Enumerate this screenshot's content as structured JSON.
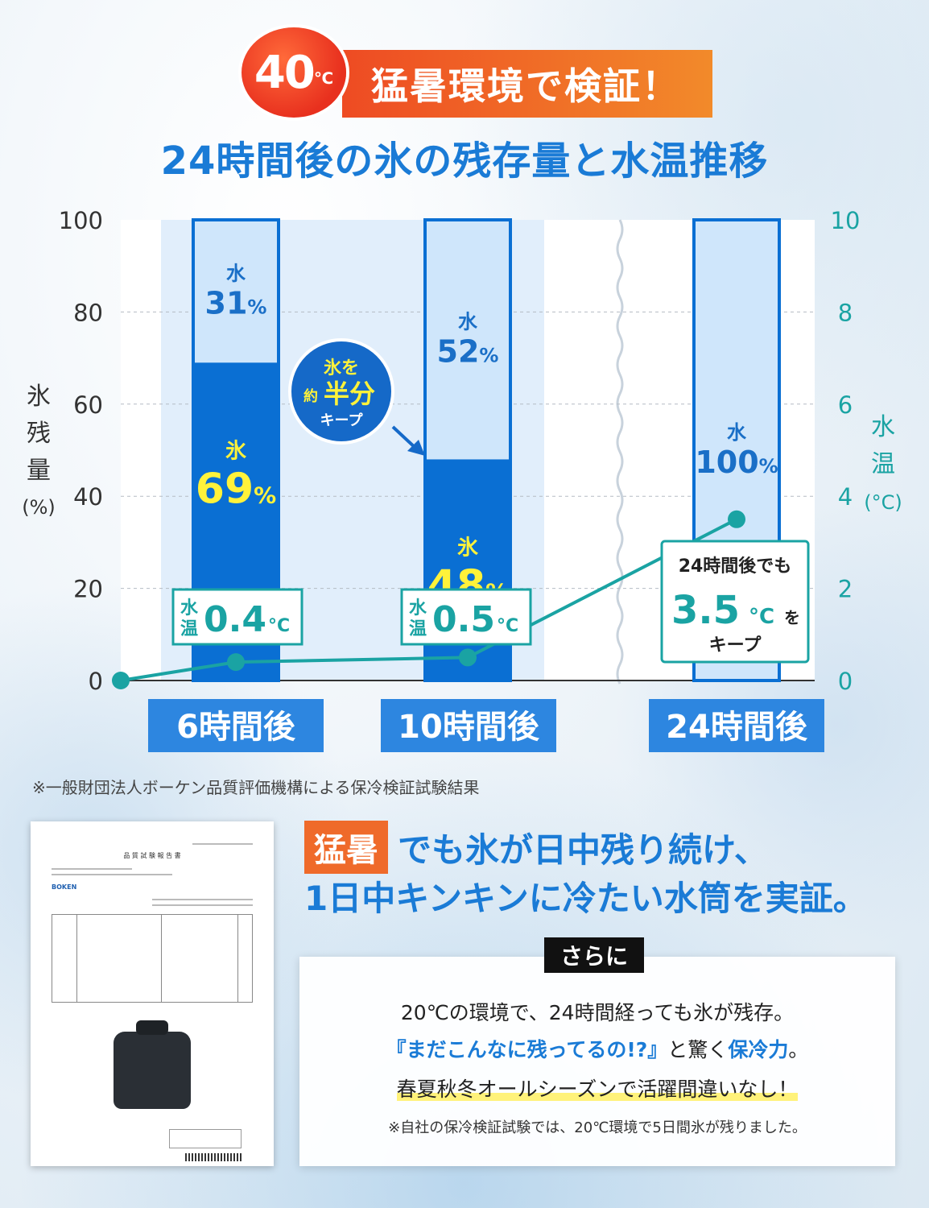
{
  "header": {
    "badge_number": "40",
    "badge_unit": "℃",
    "banner": "猛暑環境で検証！",
    "subtitle": "24時間後の氷の残存量と水温推移"
  },
  "chart_data": {
    "type": "bar",
    "categories": [
      "6時間後",
      "10時間後",
      "24時間後"
    ],
    "left_axis": {
      "label_chars": [
        "氷",
        "残",
        "量"
      ],
      "label_unit": "(%)",
      "ylim": [
        0,
        100
      ],
      "ticks": [
        "0",
        "20",
        "40",
        "60",
        "80",
        "100"
      ]
    },
    "right_axis": {
      "label_chars": [
        "水",
        "温"
      ],
      "label_unit": "(°C)",
      "ylim": [
        0,
        10
      ],
      "ticks": [
        "0",
        "2",
        "4",
        "6",
        "8",
        "10"
      ]
    },
    "series": [
      {
        "values": [
          69,
          48,
          0
        ],
        "label": "氷"
      },
      {
        "values": [
          31,
          52,
          100
        ],
        "label": "水"
      }
    ],
    "water_temp": {
      "x": [
        "0時間",
        "6時間後",
        "10時間後",
        "24時間後"
      ],
      "values": [
        0,
        0.4,
        0.5,
        3.5
      ]
    },
    "bar_labels": {
      "ice_word": "氷",
      "water_word": "水",
      "pct": "%",
      "ice_values": [
        "69",
        "48"
      ],
      "water_values": [
        "31",
        "52",
        "100"
      ]
    },
    "temp_callouts": [
      {
        "word_top": "水",
        "word_bottom": "温",
        "value": "0.4",
        "unit": "°C"
      },
      {
        "word_top": "水",
        "word_bottom": "温",
        "value": "0.5",
        "unit": "°C"
      }
    ],
    "big_callout": {
      "line1": "24時間後でも",
      "value": "3.5",
      "unit": "°C",
      "suffix": "を",
      "line3": "キープ"
    },
    "keep_badge": {
      "line1": "氷を",
      "line2a": "約",
      "line2b": "半分",
      "line3": "キープ"
    },
    "colors": {
      "ice": "#0a6fd3",
      "water": "#cfe6fb",
      "line": "#1aa3a3",
      "ice_text": "#fff23a",
      "water_text": "#1a6fc7",
      "category_bg": "#2d86e0"
    }
  },
  "footnote": "※一般財団法人ボーケン品質評価機構による保冷検証試験結果",
  "document": {
    "title": "品 質 試 験 報 告 書",
    "logo": "BOKEN"
  },
  "claim": {
    "tag": "猛暑",
    "line1_rest": "でも氷が日中残り続け、",
    "line2": "1日中キンキンに冷たい水筒を実証。"
  },
  "box": {
    "tag": "さらに",
    "line1": "20℃の環境で、24時間経っても氷が残存。",
    "line2_a": "『まだこんなに残ってるの!?』",
    "line2_b": "と驚く",
    "line2_c": "保冷力",
    "line2_d": "。",
    "line3": "春夏秋冬オールシーズンで活躍間違いなし！",
    "note": "※自社の保冷検証試験では、20℃環境で5日間氷が残りました。"
  }
}
